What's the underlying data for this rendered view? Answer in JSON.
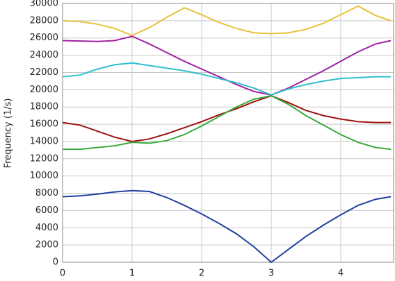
{
  "chart_data": {
    "type": "line",
    "y_label": "Frequency (1/s)",
    "x": [
      0,
      0.25,
      0.5,
      0.75,
      1,
      1.25,
      1.5,
      1.75,
      2,
      2.25,
      2.5,
      2.75,
      3,
      3.25,
      3.5,
      3.75,
      4,
      4.25,
      4.5,
      4.72
    ],
    "series": [
      {
        "color": "#e8c23a",
        "values": [
          28000,
          27900,
          27600,
          27100,
          26300,
          27200,
          28400,
          29500,
          28700,
          27800,
          27100,
          26600,
          26500,
          26600,
          27000,
          27700,
          28700,
          29700,
          28600,
          28000
        ]
      },
      {
        "color": "#a020a0",
        "values": [
          25700,
          25650,
          25600,
          25700,
          26200,
          25300,
          24300,
          23300,
          22400,
          21500,
          20600,
          19800,
          19400,
          20200,
          21200,
          22200,
          23300,
          24400,
          25300,
          25700
        ]
      },
      {
        "color": "#2fbfcf",
        "values": [
          21500,
          21700,
          22400,
          22900,
          23100,
          22800,
          22500,
          22200,
          21800,
          21300,
          20800,
          20200,
          19400,
          20100,
          20600,
          21000,
          21300,
          21400,
          21500,
          21500
        ]
      },
      {
        "color": "#a01010",
        "values": [
          16200,
          15900,
          15200,
          14500,
          14000,
          14300,
          14900,
          15600,
          16300,
          17100,
          17800,
          18600,
          19300,
          18500,
          17600,
          17000,
          16600,
          16300,
          16200,
          16200
        ]
      },
      {
        "color": "#3aaa3a",
        "values": [
          13100,
          13100,
          13300,
          13500,
          13900,
          13800,
          14100,
          14800,
          15800,
          16900,
          18000,
          18900,
          19300,
          18300,
          17000,
          15900,
          14800,
          13900,
          13300,
          13100
        ]
      },
      {
        "color": "#2040a0",
        "values": [
          7600,
          7700,
          7900,
          8150,
          8300,
          8200,
          7500,
          6600,
          5600,
          4500,
          3300,
          1800,
          0,
          1500,
          3000,
          4300,
          5500,
          6600,
          7300,
          7600
        ]
      }
    ],
    "xlim": [
      0,
      4.76
    ],
    "xticks": [
      0,
      1,
      2,
      3,
      4
    ],
    "ylim": [
      0,
      30000
    ],
    "yticks": [
      0,
      2000,
      4000,
      6000,
      8000,
      10000,
      12000,
      14000,
      16000,
      18000,
      20000,
      22000,
      24000,
      26000,
      28000,
      30000
    ],
    "grid": true
  }
}
